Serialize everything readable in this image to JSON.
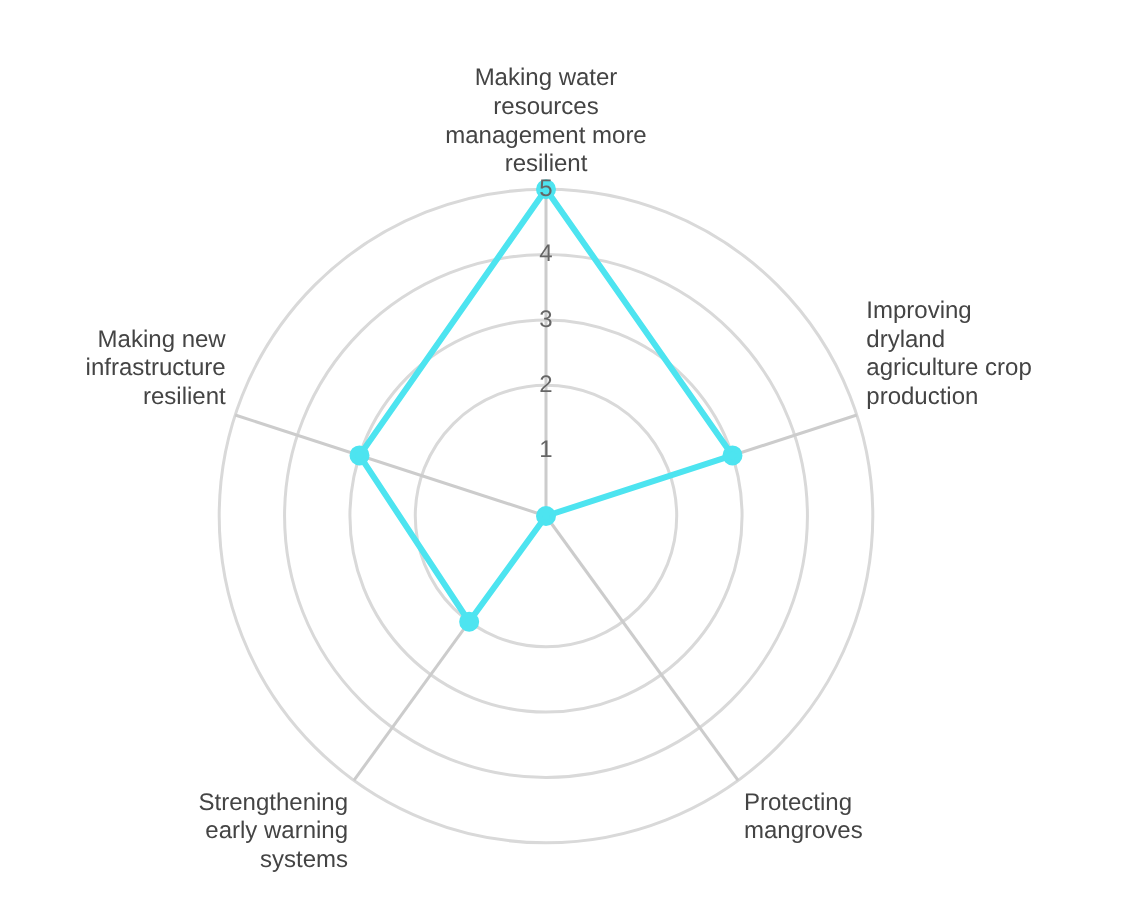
{
  "chart_data": {
    "type": "radar",
    "categories": [
      "Making water resources management more resilient",
      "Improving dryland agriculture crop production",
      "Protecting mangroves",
      "Strengthening early warning systems",
      "Making new infrastructure resilient"
    ],
    "series": [
      {
        "color": "#4de4f0",
        "values": [
          5,
          3,
          0,
          2,
          3
        ]
      }
    ],
    "ylim": [
      0,
      5
    ],
    "yticks": [
      1,
      2,
      3,
      4,
      5
    ],
    "grid": true,
    "legend": false,
    "marker": "circle",
    "line_style": "solid"
  }
}
